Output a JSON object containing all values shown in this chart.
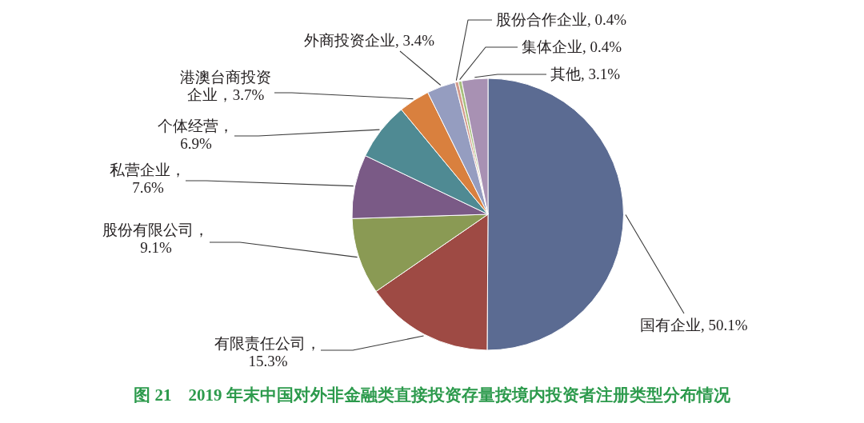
{
  "chart_data": {
    "type": "pie",
    "title": "图 21　2019 年末中国对外非金融类直接投资存量按境内投资者注册类型分布情况",
    "categories": [
      "国有企业, 50.1%",
      "有限责任公司，15.3%",
      "股份有限公司，9.1%",
      "私营企业，7.6%",
      "个体经营，6.9%",
      "港澳台商投资企业，3.7%",
      "外商投资企业, 3.4%",
      "股份合作企业, 0.4%",
      "集体企业, 0.4%",
      "其他, 3.1%"
    ],
    "values": [
      50.1,
      15.3,
      9.1,
      7.6,
      6.9,
      3.7,
      3.4,
      0.4,
      0.4,
      3.1
    ],
    "colors": [
      "#5b6b92",
      "#9e4a44",
      "#8a9a54",
      "#7a5a86",
      "#4f8a93",
      "#d9803e",
      "#959dc0",
      "#d39a8c",
      "#a8c07e",
      "#a891b3"
    ]
  }
}
